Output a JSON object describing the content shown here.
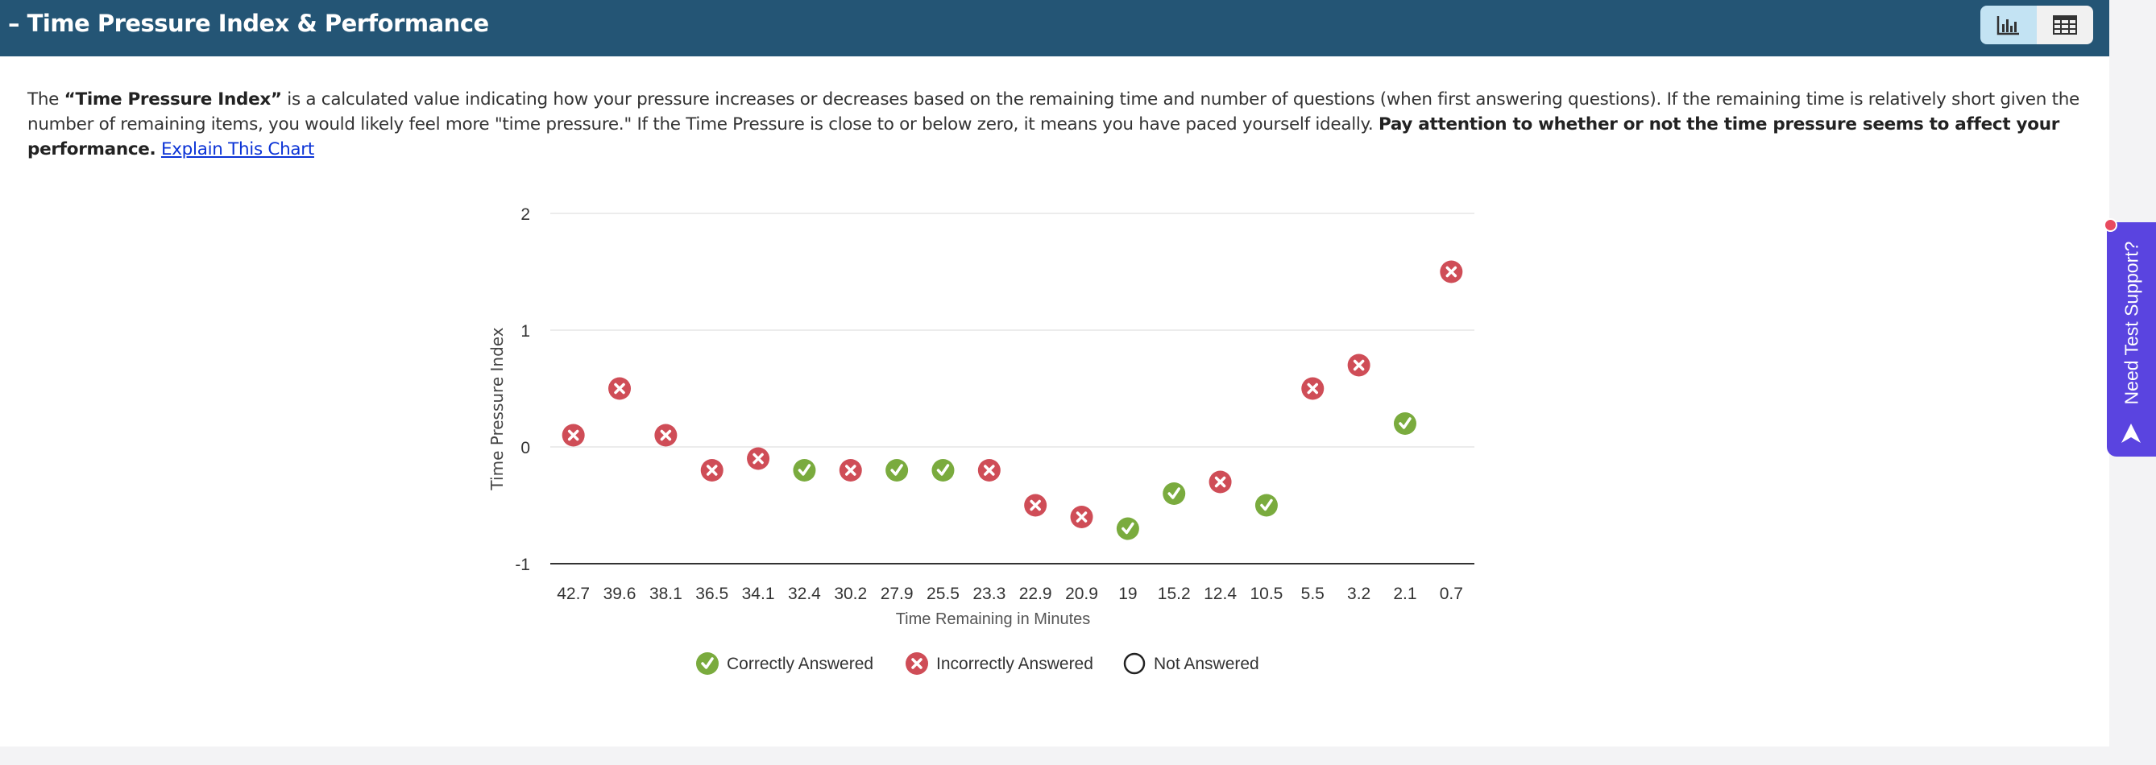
{
  "header": {
    "title": "Time Pressure Index & Performance",
    "collapse_icon": "minus-icon",
    "views": [
      {
        "name": "chart-view",
        "icon": "bar-chart-icon",
        "active": true
      },
      {
        "name": "table-view",
        "icon": "table-icon",
        "active": false
      }
    ]
  },
  "description": {
    "p1": "The ",
    "b1": "“Time Pressure Index”",
    "p2": " is a calculated value indicating how your pressure increases or decreases based on the remaining time and number of questions (when first answering questions). If the remaining time is relatively short given the number of remaining items, you would likely feel more \"time pressure.\" If the Time Pressure is close to or below zero, it means you have paced yourself ideally. ",
    "b2": "Pay attention to whether or not the time pressure seems to affect your performance.",
    "link": "Explain This Chart"
  },
  "support": {
    "label": "Need Test Support?"
  },
  "colors": {
    "header": "#245575",
    "correct": "#7aab3e",
    "incorrect": "#cf4d57",
    "support": "#5a44e0"
  },
  "chart_data": {
    "type": "scatter",
    "xlabel": "Time Remaining in Minutes",
    "ylabel": "Time Pressure Index",
    "ylim": [
      -1,
      2
    ],
    "yticks": [
      "2",
      "1",
      "0",
      "-1"
    ],
    "grid": true,
    "legend_position": "bottom",
    "categories": [
      "42.7",
      "39.6",
      "38.1",
      "36.5",
      "34.1",
      "32.4",
      "30.2",
      "27.9",
      "25.5",
      "23.3",
      "22.9",
      "20.9",
      "19",
      "15.2",
      "12.4",
      "10.5",
      "5.5",
      "3.2",
      "2.1",
      "0.7"
    ],
    "values": [
      0.1,
      0.5,
      0.1,
      -0.2,
      -0.1,
      -0.2,
      -0.2,
      -0.2,
      -0.2,
      -0.2,
      -0.5,
      -0.6,
      -0.7,
      -0.4,
      -0.3,
      -0.5,
      0.5,
      0.7,
      0.2,
      1.5
    ],
    "status": [
      "incorrect",
      "incorrect",
      "incorrect",
      "incorrect",
      "incorrect",
      "correct",
      "incorrect",
      "correct",
      "correct",
      "incorrect",
      "incorrect",
      "incorrect",
      "correct",
      "correct",
      "incorrect",
      "correct",
      "incorrect",
      "incorrect",
      "correct",
      "incorrect"
    ],
    "legend": [
      {
        "key": "correct",
        "label": "Correctly Answered"
      },
      {
        "key": "incorrect",
        "label": "Incorrectly Answered"
      },
      {
        "key": "not_answered",
        "label": "Not Answered"
      }
    ]
  }
}
